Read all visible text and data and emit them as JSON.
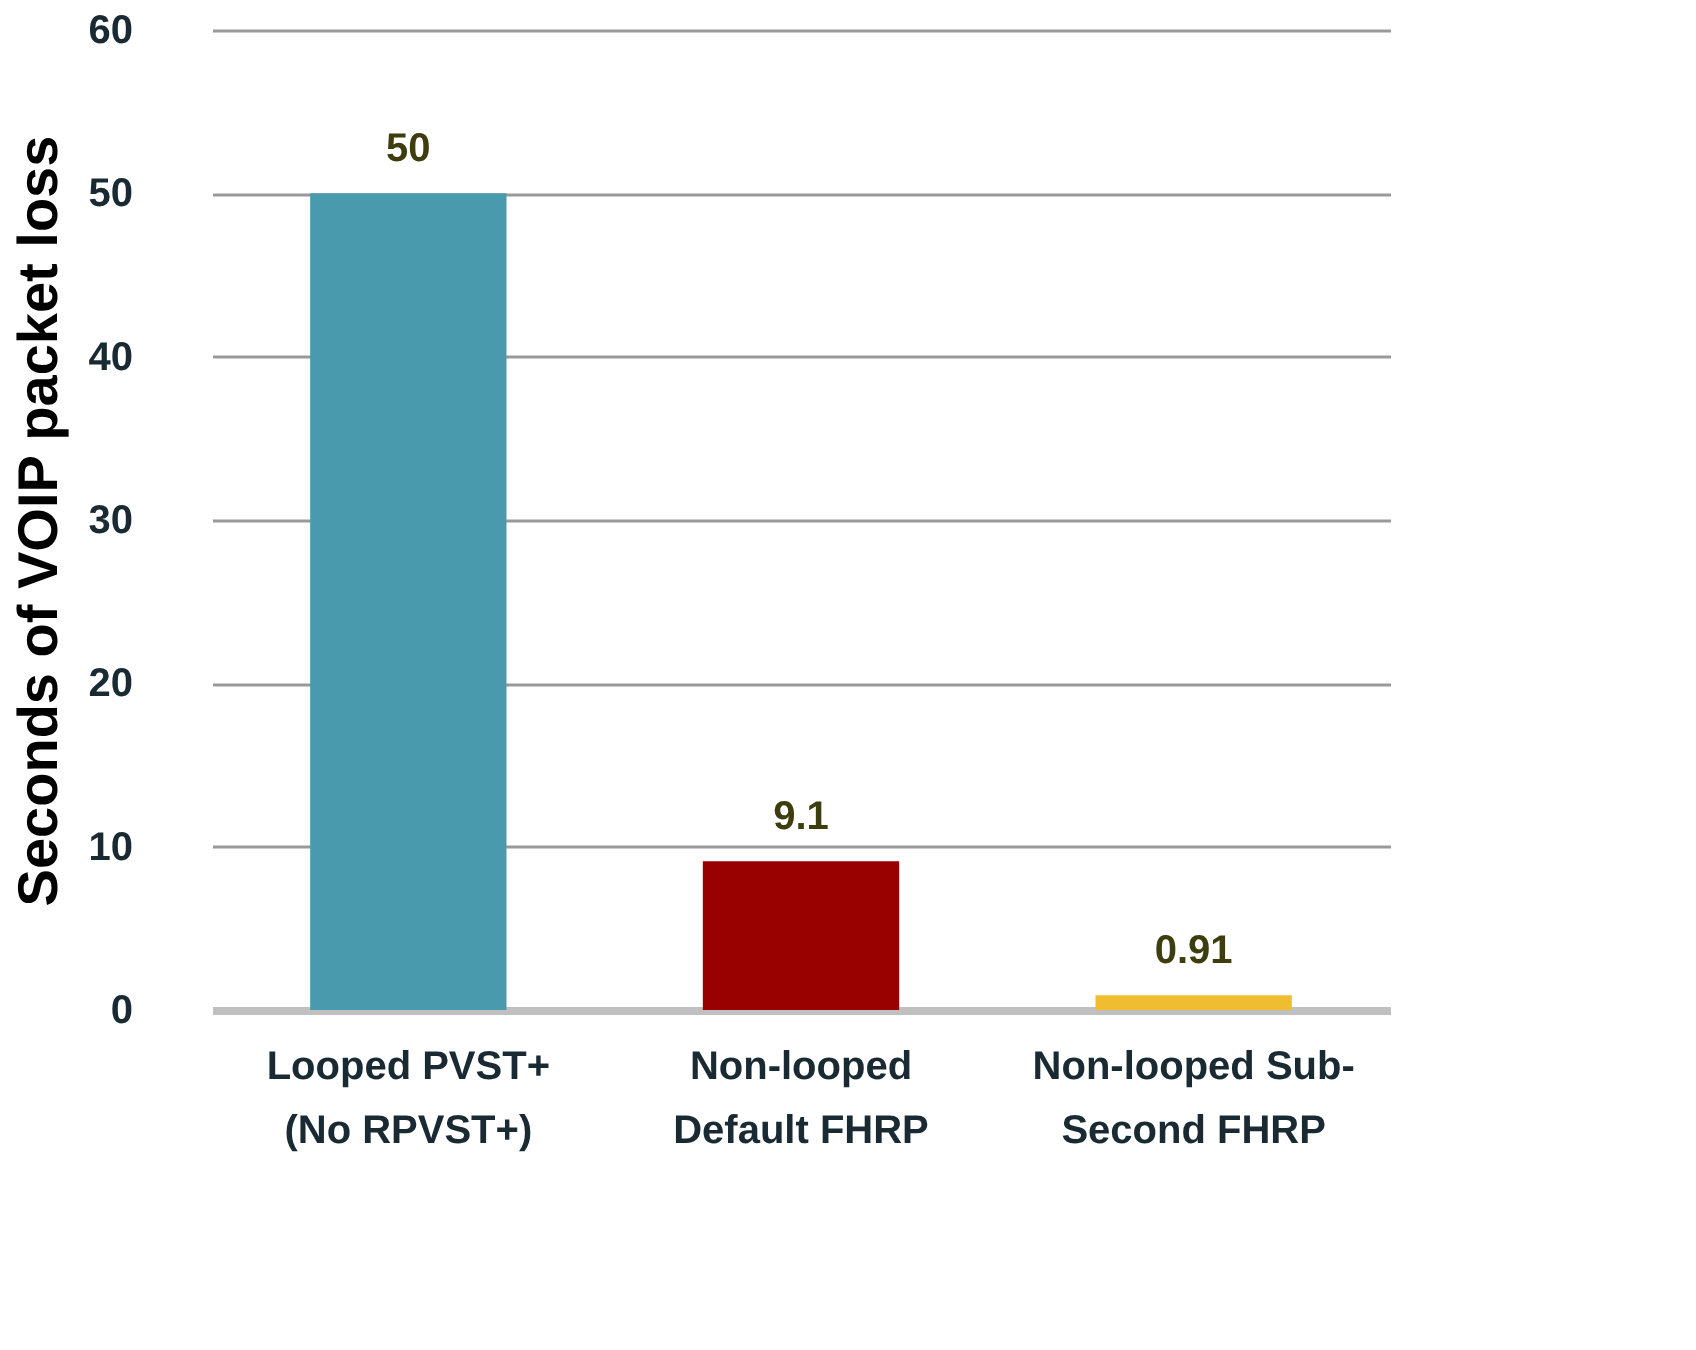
{
  "chart_data": {
    "type": "bar",
    "ylabel": "Seconds of VOIP packet loss",
    "categories": [
      "Looped PVST+\n(No RPVST+)",
      "Non-looped\nDefault FHRP",
      "Non-looped Sub-\nSecond FHRP"
    ],
    "values": [
      50,
      9.1,
      0.91
    ],
    "colors": [
      "#4a9aae",
      "#990000",
      "#f0bc30"
    ],
    "ylim": [
      0,
      60
    ],
    "yticks": [
      0,
      10,
      20,
      30,
      40,
      50,
      60
    ],
    "grid": "y",
    "data_labels": true
  }
}
